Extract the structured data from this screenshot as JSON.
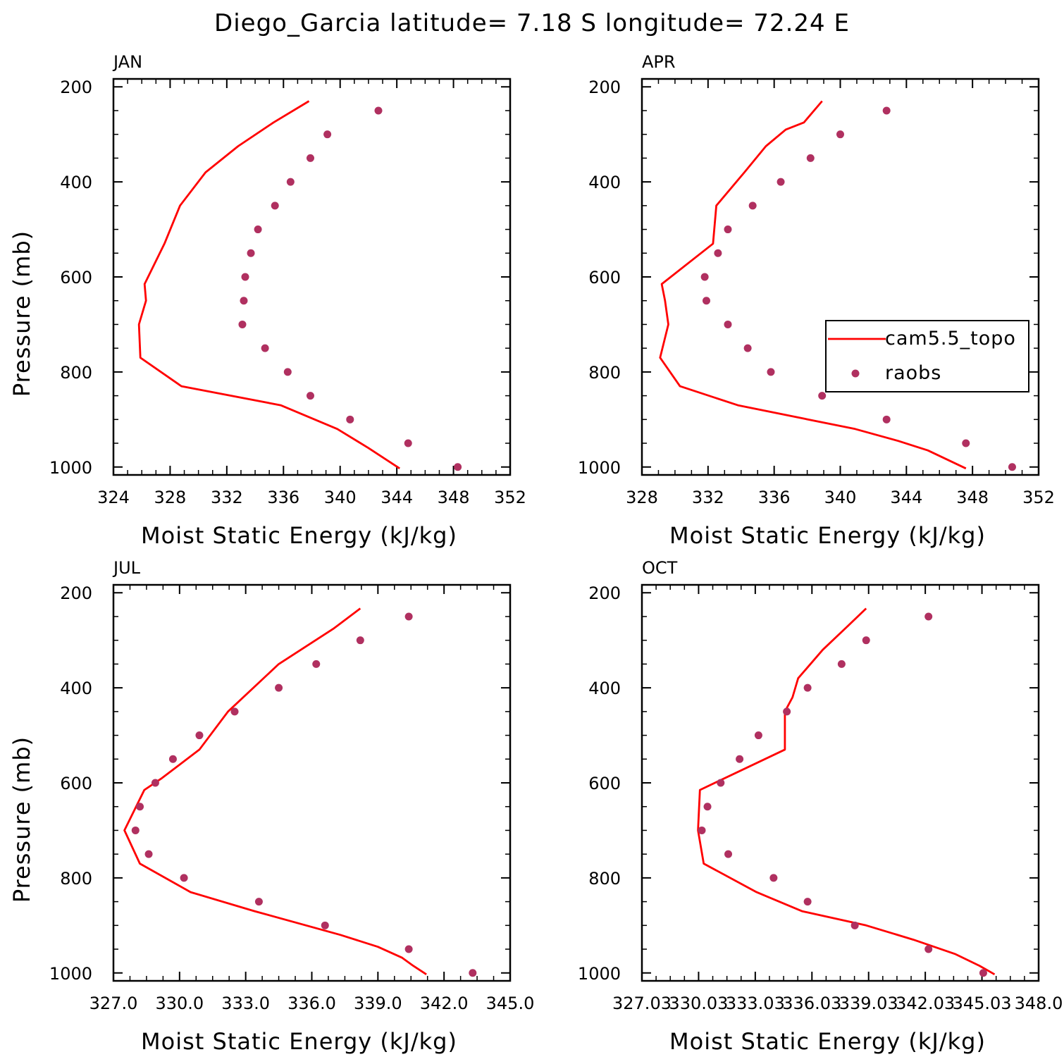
{
  "title": "Diego_Garcia  latitude= 7.18 S longitude= 72.24 E",
  "colors": {
    "model": "#ff0000",
    "obs": "#b03060"
  },
  "legend": {
    "model": "cam5.5_topo",
    "obs": "raobs"
  },
  "chart_data": [
    {
      "type": "line",
      "panel_label": "JAN",
      "xlabel": "Moist Static Energy (kJ/kg)",
      "ylabel": "Pressure (mb)",
      "xlim": [
        324,
        352
      ],
      "ylim": [
        1000,
        200
      ],
      "xticks": [
        324,
        328,
        332,
        336,
        340,
        344,
        348,
        352
      ],
      "xtick_labels": [
        "324",
        "328",
        "332",
        "336",
        "340",
        "344",
        "348",
        "352"
      ],
      "yticks": [
        200,
        400,
        600,
        800,
        1000
      ],
      "series": [
        {
          "name": "cam5.5_topo",
          "kind": "line",
          "x": [
            337.8,
            335.3,
            332.8,
            330.5,
            328.7,
            327.6,
            326.2,
            326.3,
            325.8,
            325.9,
            328.8,
            335.8,
            339.8,
            342.0,
            344.2
          ],
          "y": [
            230,
            275,
            325,
            380,
            450,
            530,
            615,
            650,
            700,
            770,
            830,
            870,
            920,
            960,
            1003
          ]
        },
        {
          "name": "raobs",
          "kind": "scatter",
          "x": [
            342.7,
            339.1,
            337.9,
            336.5,
            335.4,
            334.2,
            333.7,
            333.3,
            333.2,
            333.1,
            334.7,
            336.3,
            337.9,
            340.7,
            344.8,
            348.3
          ],
          "y": [
            250,
            300,
            350,
            400,
            450,
            500,
            550,
            600,
            650,
            700,
            750,
            800,
            850,
            900,
            950,
            1000
          ]
        }
      ]
    },
    {
      "type": "line",
      "panel_label": "APR",
      "xlabel": "Moist Static Energy (kJ/kg)",
      "ylabel": "",
      "xlim": [
        328,
        352
      ],
      "ylim": [
        1000,
        200
      ],
      "xticks": [
        328,
        332,
        336,
        340,
        344,
        348,
        352
      ],
      "xtick_labels": [
        "328",
        "332",
        "336",
        "340",
        "344",
        "348",
        "352"
      ],
      "yticks": [
        200,
        400,
        600,
        800,
        1000
      ],
      "legend_position": "right",
      "series": [
        {
          "name": "cam5.5_topo",
          "kind": "line",
          "x": [
            338.9,
            337.8,
            336.7,
            335.5,
            334.2,
            332.5,
            332.3,
            329.2,
            329.4,
            329.6,
            329.1,
            330.3,
            333.8,
            340.9,
            343.5,
            345.3,
            347.6
          ],
          "y": [
            230,
            275,
            290,
            325,
            380,
            450,
            530,
            615,
            650,
            700,
            770,
            830,
            870,
            920,
            945,
            965,
            1003
          ]
        },
        {
          "name": "raobs",
          "kind": "scatter",
          "x": [
            342.8,
            340.0,
            338.2,
            336.4,
            334.7,
            333.2,
            332.6,
            331.8,
            331.9,
            333.2,
            334.4,
            335.8,
            338.9,
            342.8,
            347.6,
            350.4
          ],
          "y": [
            250,
            300,
            350,
            400,
            450,
            500,
            550,
            600,
            650,
            700,
            750,
            800,
            850,
            900,
            950,
            1000
          ]
        }
      ]
    },
    {
      "type": "line",
      "panel_label": "JUL",
      "xlabel": "Moist Static Energy (kJ/kg)",
      "ylabel": "Pressure (mb)",
      "xlim": [
        327,
        345
      ],
      "ylim": [
        1000,
        200
      ],
      "xticks": [
        327,
        330,
        333,
        336,
        339,
        342,
        345
      ],
      "xtick_labels": [
        "327.0",
        "330.0",
        "333.0",
        "336.0",
        "339.0",
        "342.0",
        "345.0"
      ],
      "yticks": [
        200,
        400,
        600,
        800,
        1000
      ],
      "series": [
        {
          "name": "cam5.5_topo",
          "kind": "line",
          "x": [
            338.2,
            337.0,
            334.5,
            332.2,
            330.9,
            329.2,
            328.4,
            327.5,
            328.2,
            330.5,
            333.4,
            337.3,
            339.0,
            340.1,
            340.6,
            341.2
          ],
          "y": [
            233,
            275,
            350,
            450,
            530,
            590,
            615,
            700,
            770,
            830,
            870,
            920,
            945,
            968,
            985,
            1003
          ]
        },
        {
          "name": "raobs",
          "kind": "scatter",
          "x": [
            340.4,
            338.2,
            336.2,
            334.5,
            332.5,
            330.9,
            329.7,
            328.9,
            328.2,
            328.0,
            328.6,
            330.2,
            333.6,
            336.6,
            340.4,
            343.3
          ],
          "y": [
            250,
            300,
            350,
            400,
            450,
            500,
            550,
            600,
            650,
            700,
            750,
            800,
            850,
            900,
            950,
            1000
          ]
        }
      ]
    },
    {
      "type": "line",
      "panel_label": "OCT",
      "xlabel": "Moist Static Energy (kJ/kg)",
      "ylabel": "",
      "xlim": [
        327.03,
        348.03
      ],
      "ylim": [
        1000,
        200
      ],
      "xticks": [
        327.03,
        330.03,
        333.03,
        336.03,
        339.03,
        342.03,
        345.03,
        348.03
      ],
      "xtick_labels": [
        "327.03",
        "330.03",
        "333.03",
        "336.03",
        "339.03",
        "342.03",
        "345.03",
        "348.0"
      ],
      "yticks": [
        200,
        400,
        600,
        800,
        1000
      ],
      "series": [
        {
          "name": "cam5.5_topo",
          "kind": "line",
          "x": [
            338.9,
            337.8,
            336.6,
            335.3,
            335.0,
            334.6,
            334.6,
            330.1,
            330.0,
            330.3,
            333.1,
            335.5,
            338.9,
            341.4,
            343.6,
            344.9,
            345.7
          ],
          "y": [
            233,
            275,
            320,
            380,
            420,
            450,
            530,
            615,
            700,
            770,
            830,
            870,
            900,
            930,
            960,
            985,
            1003
          ]
        },
        {
          "name": "raobs",
          "kind": "scatter",
          "x": [
            342.2,
            338.9,
            337.6,
            335.8,
            334.7,
            333.2,
            332.2,
            331.2,
            330.5,
            330.2,
            331.6,
            334.0,
            335.8,
            338.3,
            342.2,
            345.1
          ],
          "y": [
            250,
            300,
            350,
            400,
            450,
            500,
            550,
            600,
            650,
            700,
            750,
            800,
            850,
            900,
            950,
            1000
          ]
        }
      ]
    }
  ]
}
